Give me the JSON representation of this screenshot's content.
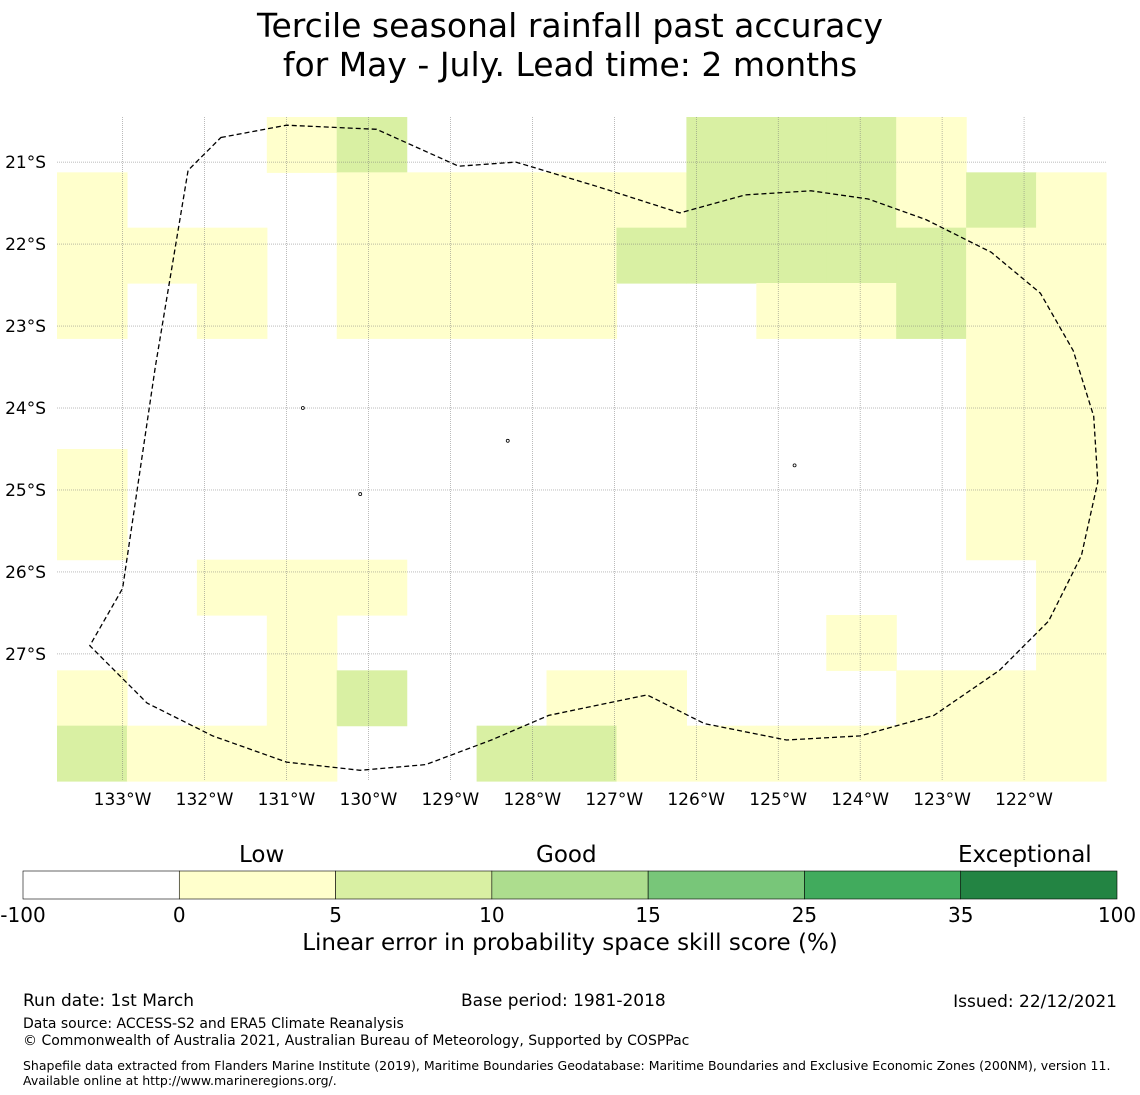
{
  "title": {
    "line1": "Tercile seasonal rainfall past accuracy",
    "line2": "for May - July. Lead time: 2 months"
  },
  "map": {
    "lon_min": -133.8,
    "lon_max": -121.0,
    "lat_max": -20.45,
    "lat_min": -28.55,
    "lon_ticks": [
      {
        "value": -133,
        "label": "133°W"
      },
      {
        "value": -132,
        "label": "132°W"
      },
      {
        "value": -131,
        "label": "131°W"
      },
      {
        "value": -130,
        "label": "130°W"
      },
      {
        "value": -129,
        "label": "129°W"
      },
      {
        "value": -128,
        "label": "128°W"
      },
      {
        "value": -127,
        "label": "127°W"
      },
      {
        "value": -126,
        "label": "126°W"
      },
      {
        "value": -125,
        "label": "125°W"
      },
      {
        "value": -124,
        "label": "124°W"
      },
      {
        "value": -123,
        "label": "123°W"
      },
      {
        "value": -122,
        "label": "122°W"
      }
    ],
    "lat_ticks": [
      {
        "value": -21,
        "label": "21°S"
      },
      {
        "value": -22,
        "label": "22°S"
      },
      {
        "value": -23,
        "label": "23°S"
      },
      {
        "value": -24,
        "label": "24°S"
      },
      {
        "value": -25,
        "label": "25°S"
      },
      {
        "value": -26,
        "label": "26°S"
      },
      {
        "value": -27,
        "label": "27°S"
      }
    ],
    "grid": {
      "rows": 12,
      "cols": 15,
      "legend": {
        "0": "below 0 (white)",
        "1": "0 to 5",
        "2": "5 to 10"
      },
      "cells": [
        "000120000222100",
        "100011111222121",
        "111011112222211",
        "101011110011211",
        "000000000000011",
        "000000000000011",
        "100000000000011",
        "100000000000011",
        "001110000000001",
        "000100000001001",
        "100120011000111",
        "211100221111111"
      ]
    },
    "eez_boundary": {
      "name": "EEZ boundary (dashed)",
      "vertices_lonlat": [
        [
          -131.8,
          -20.7
        ],
        [
          -131.0,
          -20.55
        ],
        [
          -129.9,
          -20.6
        ],
        [
          -128.9,
          -21.05
        ],
        [
          -128.2,
          -21.0
        ],
        [
          -127.2,
          -21.3
        ],
        [
          -126.2,
          -21.62
        ],
        [
          -125.4,
          -21.4
        ],
        [
          -124.6,
          -21.35
        ],
        [
          -123.9,
          -21.45
        ],
        [
          -123.2,
          -21.7
        ],
        [
          -122.4,
          -22.1
        ],
        [
          -121.8,
          -22.6
        ],
        [
          -121.4,
          -23.3
        ],
        [
          -121.15,
          -24.1
        ],
        [
          -121.1,
          -24.9
        ],
        [
          -121.3,
          -25.8
        ],
        [
          -121.7,
          -26.6
        ],
        [
          -122.3,
          -27.2
        ],
        [
          -123.1,
          -27.75
        ],
        [
          -124.0,
          -28.0
        ],
        [
          -124.9,
          -28.05
        ],
        [
          -125.9,
          -27.85
        ],
        [
          -126.6,
          -27.5
        ],
        [
          -127.8,
          -27.75
        ],
        [
          -128.5,
          -28.05
        ],
        [
          -129.3,
          -28.35
        ],
        [
          -130.1,
          -28.42
        ],
        [
          -131.0,
          -28.32
        ],
        [
          -131.9,
          -28.0
        ],
        [
          -132.7,
          -27.6
        ],
        [
          -133.4,
          -26.9
        ],
        [
          -133.0,
          -26.2
        ],
        [
          -132.6,
          -23.5
        ],
        [
          -132.2,
          -21.1
        ],
        [
          -131.8,
          -20.7
        ]
      ]
    },
    "islands": [
      {
        "name": "islet",
        "lon": -130.8,
        "lat": -24.0
      },
      {
        "name": "islet",
        "lon": -130.1,
        "lat": -25.05
      },
      {
        "name": "islet",
        "lon": -128.3,
        "lat": -24.4
      },
      {
        "name": "islet",
        "lon": -124.8,
        "lat": -24.7
      }
    ]
  },
  "colorbar": {
    "category_labels": [
      "Low",
      "Good",
      "Exceptional"
    ],
    "ticks": [
      "-100",
      "0",
      "5",
      "10",
      "15",
      "25",
      "35",
      "100"
    ],
    "colors": [
      "#ffffff",
      "#ffffcc",
      "#d9f0a3",
      "#addd8e",
      "#78c679",
      "#41ab5d",
      "#238443"
    ],
    "label": "Linear error in probability space skill score (%)"
  },
  "footer": {
    "run_date": "Run date: 1st March",
    "base_period": "Base period: 1981-2018",
    "issued": "Issued: 22/12/2021",
    "data_source": "Data source: ACCESS-S2 and ERA5 Climate Reanalysis",
    "copyright": "© Commonwealth of Australia 2021, Australian Bureau of Meteorology, Supported by COSPPac",
    "shapefile": "Shapefile data extracted from Flanders Marine Institute (2019), Maritime Boundaries Geodatabase: Maritime Boundaries and Exclusive Economic Zones (200NM), version 11. Available online at http://www.marineregions.org/."
  }
}
